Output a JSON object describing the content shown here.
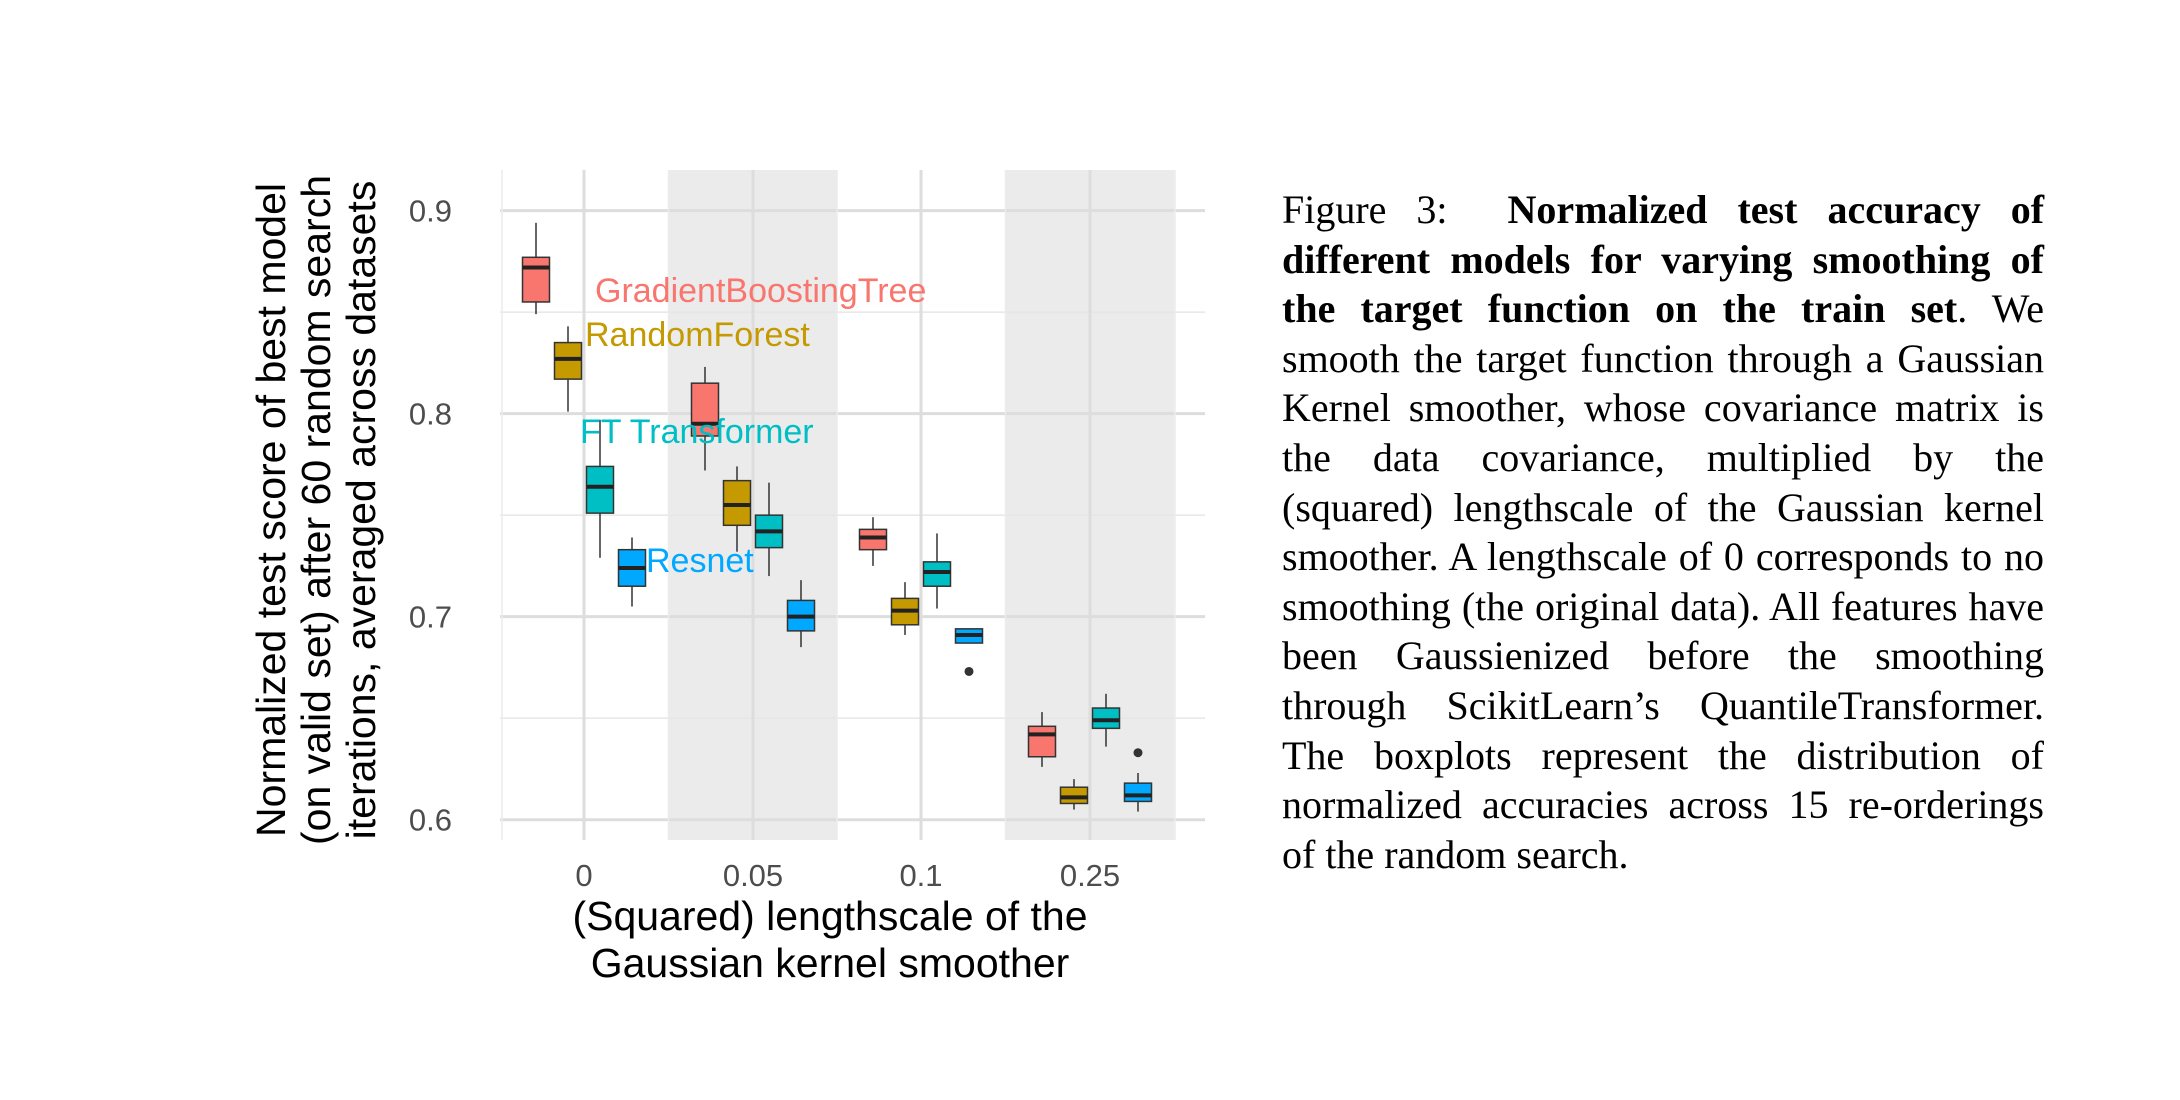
{
  "caption": {
    "figure_label": "Figure 3:",
    "title": "Normalized test accuracy of different models for varying smoothing of the target function on the train set",
    "body": ". We smooth the target function through a Gaussian Kernel smoother, whose covari­ance matrix is the data covariance, multi­plied by the (squared) lengthscale of the Gaussian kernel smoother. A lengthscale of 0 corresponds to no smoothing (the orig­inal data). All features have been Gaussi­enized before the smoothing through Scik­itLearn’s QuantileTransformer. The box­plots represent the distribution of normal­ized accuracies across 15 re-orderings of the random search."
  },
  "chart_data": {
    "type": "box",
    "xlabel": [
      "(Squared) lengthscale of the",
      "Gaussian kernel smoother"
    ],
    "ylabel": [
      "Normalized test score of best model",
      "(on valid set) after 60 random search",
      "iterations, averaged across datasets"
    ],
    "x_ticks": [
      "0",
      "0.05",
      "0.1",
      "0.25"
    ],
    "y_ticks": [
      "0.6",
      "0.7",
      "0.8",
      "0.9"
    ],
    "ylim": [
      0.59,
      0.92
    ],
    "grid": true,
    "shaded_groups": [
      "0.05",
      "0.25"
    ],
    "series": [
      {
        "name": "GradientBoostingTree",
        "color": "#F8766D",
        "boxes": [
          {
            "x": "0",
            "whisker_low": 0.849,
            "q1": 0.855,
            "median": 0.872,
            "q3": 0.877,
            "whisker_high": 0.894,
            "outliers": []
          },
          {
            "x": "0.05",
            "whisker_low": 0.772,
            "q1": 0.789,
            "median": 0.795,
            "q3": 0.815,
            "whisker_high": 0.823,
            "outliers": []
          },
          {
            "x": "0.1",
            "whisker_low": 0.725,
            "q1": 0.733,
            "median": 0.739,
            "q3": 0.743,
            "whisker_high": 0.749,
            "outliers": []
          },
          {
            "x": "0.25",
            "whisker_low": 0.626,
            "q1": 0.631,
            "median": 0.642,
            "q3": 0.646,
            "whisker_high": 0.653,
            "outliers": []
          }
        ]
      },
      {
        "name": "RandomForest",
        "color": "#C49A00",
        "boxes": [
          {
            "x": "0",
            "whisker_low": 0.801,
            "q1": 0.817,
            "median": 0.827,
            "q3": 0.835,
            "whisker_high": 0.843,
            "outliers": []
          },
          {
            "x": "0.05",
            "whisker_low": 0.732,
            "q1": 0.745,
            "median": 0.755,
            "q3": 0.767,
            "whisker_high": 0.774,
            "outliers": []
          },
          {
            "x": "0.1",
            "whisker_low": 0.691,
            "q1": 0.696,
            "median": 0.703,
            "q3": 0.709,
            "whisker_high": 0.717,
            "outliers": []
          },
          {
            "x": "0.25",
            "whisker_low": 0.605,
            "q1": 0.608,
            "median": 0.611,
            "q3": 0.616,
            "whisker_high": 0.62,
            "outliers": []
          }
        ]
      },
      {
        "name": "FT Transformer",
        "color": "#00BFC4",
        "boxes": [
          {
            "x": "0",
            "whisker_low": 0.729,
            "q1": 0.751,
            "median": 0.764,
            "q3": 0.774,
            "whisker_high": 0.797,
            "outliers": []
          },
          {
            "x": "0.05",
            "whisker_low": 0.72,
            "q1": 0.734,
            "median": 0.742,
            "q3": 0.75,
            "whisker_high": 0.766,
            "outliers": []
          },
          {
            "x": "0.1",
            "whisker_low": 0.704,
            "q1": 0.715,
            "median": 0.722,
            "q3": 0.727,
            "whisker_high": 0.741,
            "outliers": []
          },
          {
            "x": "0.25",
            "whisker_low": 0.636,
            "q1": 0.645,
            "median": 0.649,
            "q3": 0.655,
            "whisker_high": 0.662,
            "outliers": []
          }
        ]
      },
      {
        "name": "Resnet",
        "color": "#00A9FF",
        "boxes": [
          {
            "x": "0",
            "whisker_low": 0.705,
            "q1": 0.715,
            "median": 0.724,
            "q3": 0.733,
            "whisker_high": 0.739,
            "outliers": []
          },
          {
            "x": "0.05",
            "whisker_low": 0.685,
            "q1": 0.693,
            "median": 0.7,
            "q3": 0.708,
            "whisker_high": 0.718,
            "outliers": []
          },
          {
            "x": "0.1",
            "whisker_low": 0.687,
            "q1": 0.687,
            "median": 0.691,
            "q3": 0.694,
            "whisker_high": 0.694,
            "outliers": [
              0.673
            ]
          },
          {
            "x": "0.25",
            "whisker_low": 0.604,
            "q1": 0.609,
            "median": 0.612,
            "q3": 0.618,
            "whisker_high": 0.623,
            "outliers": [
              0.633
            ]
          }
        ]
      }
    ]
  }
}
